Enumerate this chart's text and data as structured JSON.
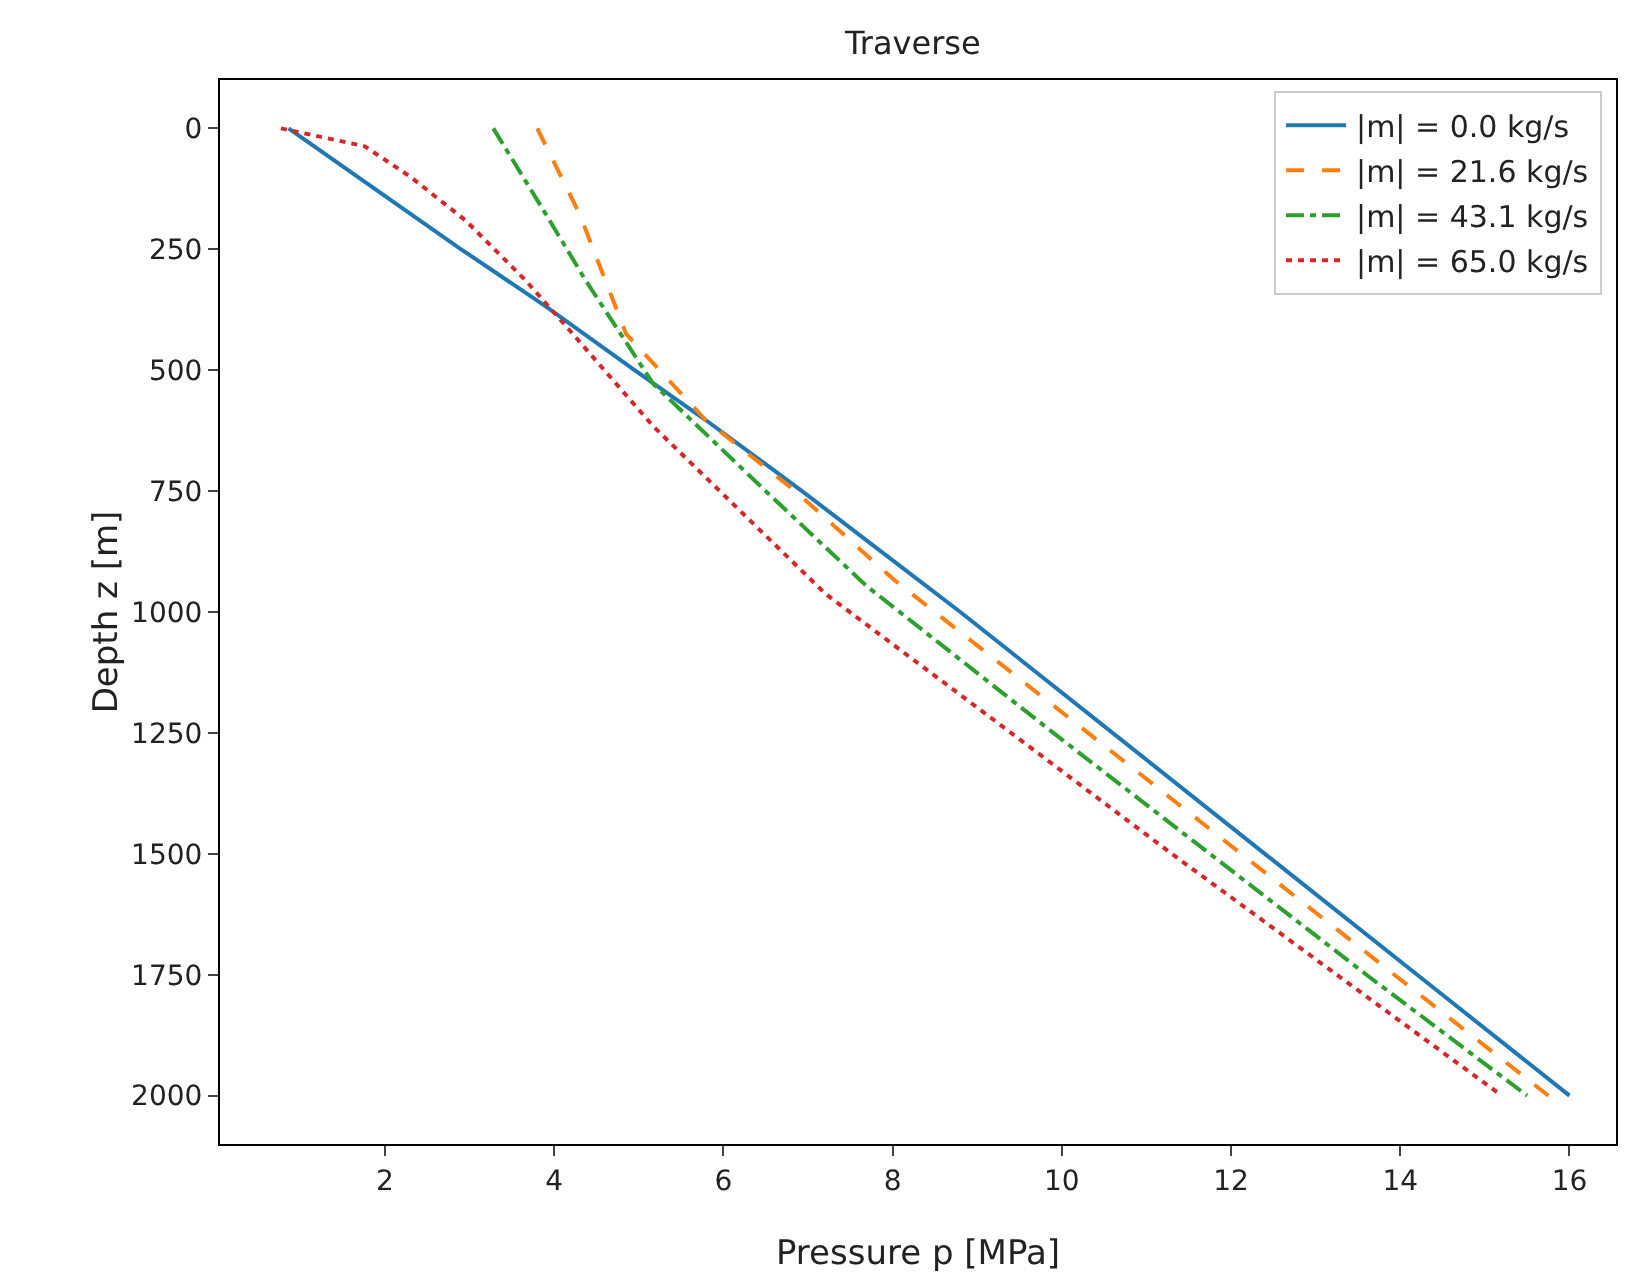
{
  "chart_data": {
    "type": "line",
    "title": "Traverse",
    "xlabel": "Pressure p [MPa]",
    "ylabel": "Depth z [m]",
    "xlim": [
      0.05,
      16.55
    ],
    "xticks": [
      2,
      4,
      6,
      8,
      10,
      12,
      14,
      16
    ],
    "ylim": [
      2100,
      -100
    ],
    "yticks": [
      0,
      250,
      500,
      750,
      1000,
      1250,
      1500,
      1750,
      2000
    ],
    "grid": false,
    "legend": "top right",
    "series": [
      {
        "name": "|m| = 0.0 kg/s",
        "color": "#1f77b4",
        "line_style": "solid",
        "x": [
          0.86,
          2.9,
          3.9,
          4.95,
          5.79,
          6.93,
          8.09,
          8.8,
          10.6,
          12.4,
          14.2,
          16.0
        ],
        "values": [
          0,
          250,
          368,
          500,
          603,
          750,
          905,
          1000,
          1250,
          1500,
          1750,
          2000
        ]
      },
      {
        "name": "|m| = 21.6 kg/s",
        "color": "#ff7f0e",
        "line_style": "dashed",
        "x": [
          3.8,
          4.3,
          4.85,
          5.79,
          6.85,
          8.02,
          10.31,
          12.12,
          13.93,
          15.75
        ],
        "values": [
          0,
          177,
          425,
          603,
          750,
          934,
          1250,
          1500,
          1750,
          2000
        ]
      },
      {
        "name": "|m| = 43.1 kg/s",
        "color": "#2ca02c",
        "line_style": "dashdot",
        "x": [
          3.28,
          3.9,
          4.37,
          5.17,
          6.5,
          7.69,
          9.9,
          11.75,
          13.6,
          15.5
        ],
        "values": [
          0,
          177,
          314,
          528,
          750,
          946,
          1250,
          1500,
          1750,
          2000
        ]
      },
      {
        "name": "|m| = 65.0 kg/s",
        "color": "#d62728",
        "line_style": "dotted",
        "x": [
          0.77,
          1.76,
          2.3,
          2.95,
          3.66,
          4.22,
          5.17,
          7.21,
          9.4,
          11.3,
          13.25,
          15.2
        ],
        "values": [
          0,
          37,
          100,
          190,
          314,
          425,
          616,
          963,
          1250,
          1500,
          1750,
          2000
        ]
      }
    ]
  }
}
